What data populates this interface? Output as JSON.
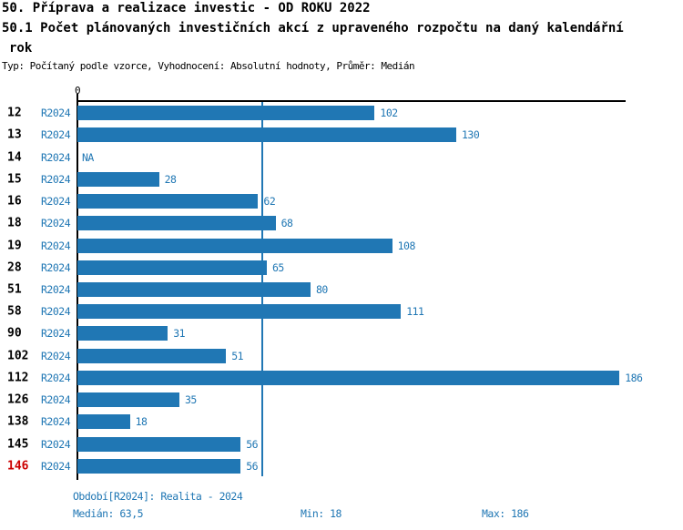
{
  "header": {
    "line1": "50. Příprava a realizace investic - OD ROKU 2022",
    "line2": "50.1 Počet plánovaných investičních akcí z upraveného rozpočtu na daný kalendářní",
    "line3": "rok",
    "meta": "Typ: Počítaný podle vzorce, Vyhodnocení: Absolutní hodnoty, Průměr: Medián"
  },
  "chart_data": {
    "type": "bar",
    "orientation": "horizontal",
    "categories": [
      "12",
      "13",
      "14",
      "15",
      "16",
      "18",
      "19",
      "28",
      "51",
      "58",
      "90",
      "102",
      "112",
      "126",
      "138",
      "145",
      "146"
    ],
    "series": [
      {
        "name": "R2024",
        "values": [
          102,
          130,
          null,
          28,
          62,
          68,
          108,
          65,
          80,
          111,
          31,
          51,
          186,
          35,
          18,
          56,
          56
        ]
      }
    ],
    "na_label": "NA",
    "highlighted_category": "146",
    "x_tick_labels": [
      "0"
    ],
    "xlim": [
      0,
      187.5
    ],
    "median_line_value": 63.5,
    "grid": false,
    "colors": {
      "bar": "#2077b4",
      "median_line": "#2077b4",
      "blue_text": "#2077b4",
      "category_label": "#000000",
      "highlighted_category_label": "#cc0000"
    }
  },
  "footer": {
    "period": "Období[R2024]: Realita - 2024",
    "median": "Medián: 63,5",
    "min": "Min: 18",
    "max": "Max: 186"
  }
}
